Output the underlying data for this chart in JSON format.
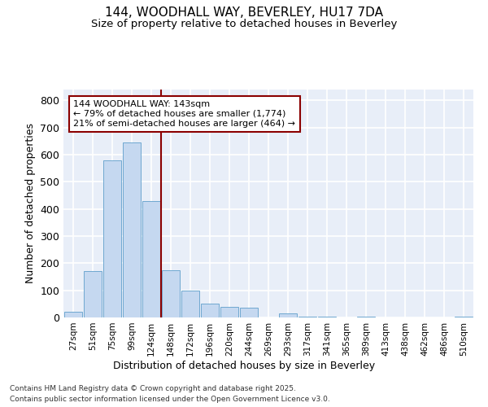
{
  "title1": "144, WOODHALL WAY, BEVERLEY, HU17 7DA",
  "title2": "Size of property relative to detached houses in Beverley",
  "xlabel": "Distribution of detached houses by size in Beverley",
  "ylabel": "Number of detached properties",
  "bar_color": "#c5d8f0",
  "bar_edge_color": "#6fa8d0",
  "background_color": "#e8eef8",
  "categories": [
    "27sqm",
    "51sqm",
    "75sqm",
    "99sqm",
    "124sqm",
    "148sqm",
    "172sqm",
    "196sqm",
    "220sqm",
    "244sqm",
    "269sqm",
    "293sqm",
    "317sqm",
    "341sqm",
    "365sqm",
    "389sqm",
    "413sqm",
    "438sqm",
    "462sqm",
    "486sqm",
    "510sqm"
  ],
  "values": [
    20,
    170,
    580,
    645,
    430,
    175,
    100,
    50,
    40,
    35,
    0,
    15,
    3,
    3,
    0,
    3,
    0,
    0,
    0,
    0,
    3
  ],
  "vline_x": 4.5,
  "annotation_line1": "144 WOODHALL WAY: 143sqm",
  "annotation_line2": "← 79% of detached houses are smaller (1,774)",
  "annotation_line3": "21% of semi-detached houses are larger (464) →",
  "ylim": [
    0,
    840
  ],
  "yticks": [
    0,
    100,
    200,
    300,
    400,
    500,
    600,
    700,
    800
  ],
  "footer1": "Contains HM Land Registry data © Crown copyright and database right 2025.",
  "footer2": "Contains public sector information licensed under the Open Government Licence v3.0."
}
